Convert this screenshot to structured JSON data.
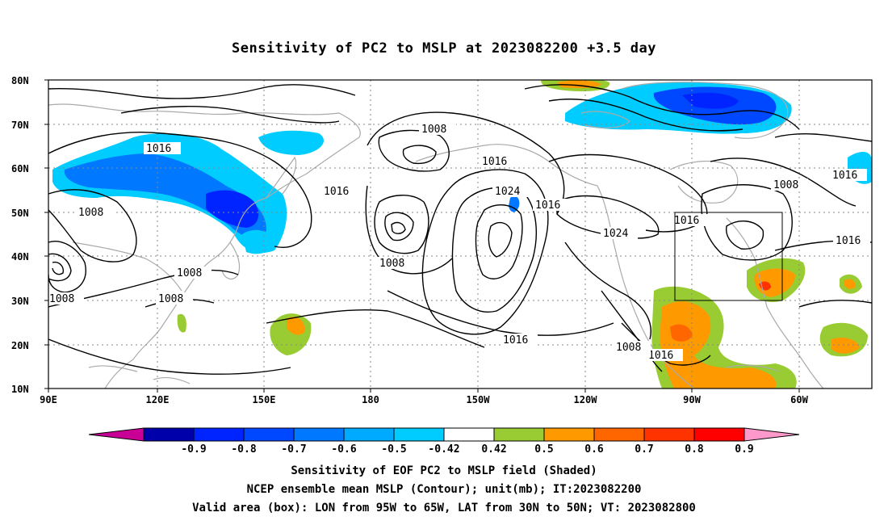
{
  "title": "Sensitivity of PC2 to MSLP at 2023082200 +3.5 day",
  "map": {
    "lat_labels": [
      "80N",
      "70N",
      "60N",
      "50N",
      "40N",
      "30N",
      "20N",
      "10N"
    ],
    "lon_labels": [
      "90E",
      "120E",
      "150E",
      "180",
      "150W",
      "120W",
      "90W",
      "60W"
    ],
    "contour_labels": [
      "1016",
      "1008",
      "1008",
      "1008",
      "1008",
      "1008",
      "1008",
      "1016",
      "1024",
      "1016",
      "1016",
      "1024",
      "1016",
      "1016",
      "1008",
      "1008",
      "1016",
      "1016"
    ],
    "valid_box": {
      "lon_from": "95W",
      "lon_to": "65W",
      "lat_from": "30N",
      "lat_to": "50N"
    }
  },
  "colorbar": {
    "levels": [
      "-0.9",
      "-0.8",
      "-0.7",
      "-0.6",
      "-0.5",
      "-0.42",
      "0.42",
      "0.5",
      "0.6",
      "0.7",
      "0.8",
      "0.9"
    ],
    "colors": [
      "#c80096",
      "#0000aa",
      "#0024ff",
      "#0048ff",
      "#0078ff",
      "#00aaff",
      "#00ccff",
      "#ffffff",
      "#99cc33",
      "#ff9900",
      "#ff6600",
      "#ff3300",
      "#ff0000",
      "#ff99cc"
    ]
  },
  "captions": {
    "line1": "Sensitivity of EOF PC2 to MSLP field (Shaded)",
    "line2": "NCEP ensemble mean MSLP (Contour); unit(mb); IT:2023082200",
    "line3": "Valid area (box): LON from 95W to 65W, LAT from 30N to 50N; VT: 2023082800"
  },
  "colors": {
    "contour": "#000000",
    "coastline": "#aaaaaa",
    "grid": "#888888",
    "frame": "#000000"
  }
}
